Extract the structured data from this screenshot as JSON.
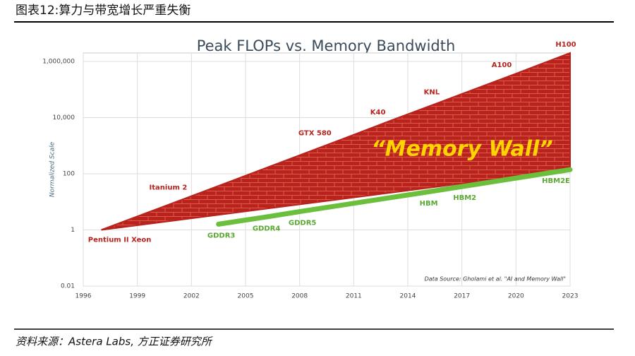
{
  "header": "图表12:算力与带宽增长严重失衡",
  "footer": "资料来源：Astera Labs, 方正证券研究所",
  "chart_data": {
    "type": "line",
    "title": "Peak FLOPs vs. Memory Bandwidth",
    "ylabel": "Normalized Scale",
    "log_y": true,
    "grid": true,
    "annotation": "“Memory Wall”",
    "source": "Data Source: Gholami et al. \"AI and Memory Wall\"",
    "xlim": [
      1996,
      2023
    ],
    "xticks": [
      1996,
      1999,
      2002,
      2005,
      2008,
      2011,
      2014,
      2017,
      2020,
      2023
    ],
    "ylim": [
      0.01,
      2000000
    ],
    "yticks": [
      0.01,
      1,
      100,
      {
        "value": 10000,
        "label": "10,000"
      },
      {
        "value": 1000000,
        "label": "1,000,000"
      }
    ],
    "series": [
      {
        "color": "#b8231d",
        "label_color": "#b8231d",
        "x": [
          1997,
          2002,
          2010,
          2013,
          2016,
          2020,
          2023
        ],
        "values": [
          1,
          16,
          1400,
          7600,
          40000,
          370000,
          2000000
        ],
        "labels": [
          "Pentium II Xeon",
          "Itanium 2",
          "GTX 580",
          "K40",
          "KNL",
          "A100",
          "H100"
        ]
      },
      {
        "color": "#6cbf3c",
        "label_color": "#5aa832",
        "x": [
          2003.5,
          2006,
          2008,
          2015,
          2017,
          2023
        ],
        "values": [
          1.6,
          2.8,
          4.5,
          22,
          35,
          140
        ],
        "labels": [
          "GDDR3",
          "GDDR4",
          "GDDR5",
          "HBM",
          "HBM2",
          "HBM2E"
        ]
      }
    ]
  }
}
